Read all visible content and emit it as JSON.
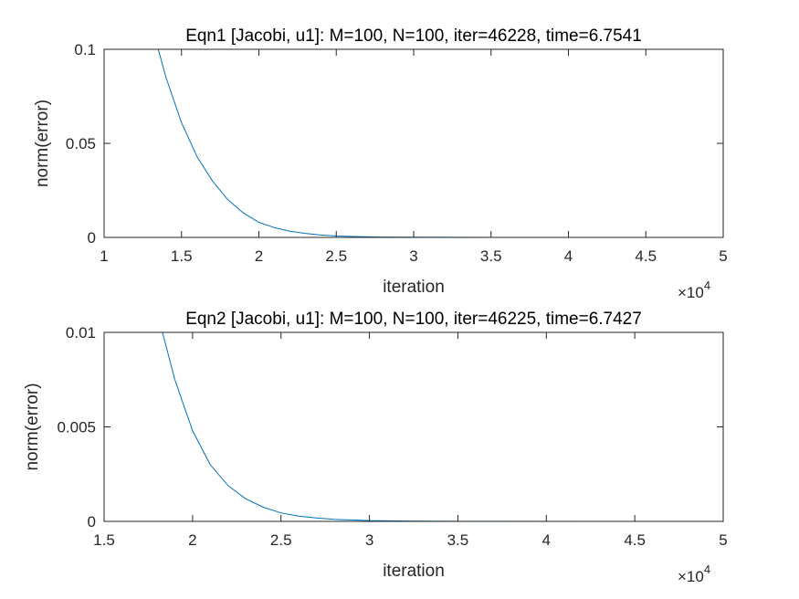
{
  "chart_data": [
    {
      "type": "line",
      "title": "Eqn1 [Jacobi, u1]: M=100, N=100, iter=46228, time=6.7541",
      "xlabel": "iteration",
      "ylabel": "norm(error)",
      "xlim": [
        10000,
        50000
      ],
      "ylim": [
        0,
        0.1
      ],
      "x_ticks": [
        10000,
        15000,
        20000,
        25000,
        30000,
        35000,
        40000,
        45000,
        50000
      ],
      "x_tick_labels": [
        "1",
        "1.5",
        "2",
        "2.5",
        "3",
        "3.5",
        "4",
        "4.5",
        "5"
      ],
      "x_exponent": "×10",
      "x_exponent_power": "4",
      "y_ticks": [
        0,
        0.05,
        0.1
      ],
      "y_tick_labels": [
        "0",
        "0.05",
        "0.1"
      ],
      "grid": false,
      "line_color": "#0072BD",
      "series": [
        {
          "x": [
            13500,
            14000,
            15000,
            16000,
            17000,
            18000,
            19000,
            20000,
            21000,
            22000,
            23000,
            24000,
            25000,
            26000,
            28000,
            30000,
            33000,
            36000,
            40000,
            43000,
            46228
          ],
          "values": [
            0.1,
            0.085,
            0.061,
            0.043,
            0.03,
            0.02,
            0.013,
            0.008,
            0.0052,
            0.0033,
            0.0021,
            0.0013,
            0.0008,
            0.0005,
            0.0002,
            0.0001,
            4e-05,
            2e-05,
            1e-05,
            5e-06,
            3e-06
          ]
        }
      ]
    },
    {
      "type": "line",
      "title": "Eqn2 [Jacobi, u1]: M=100, N=100, iter=46225, time=6.7427",
      "xlabel": "iteration",
      "ylabel": "norm(error)",
      "xlim": [
        15000,
        50000
      ],
      "ylim": [
        0,
        0.01
      ],
      "x_ticks": [
        15000,
        20000,
        25000,
        30000,
        35000,
        40000,
        45000,
        50000
      ],
      "x_tick_labels": [
        "1.5",
        "2",
        "2.5",
        "3",
        "3.5",
        "4",
        "4.5",
        "5"
      ],
      "x_exponent": "×10",
      "x_exponent_power": "4",
      "y_ticks": [
        0,
        0.005,
        0.01
      ],
      "y_tick_labels": [
        "0",
        "0.005",
        "0.01"
      ],
      "grid": false,
      "line_color": "#0072BD",
      "series": [
        {
          "x": [
            18300,
            19000,
            20000,
            21000,
            22000,
            23000,
            24000,
            25000,
            26000,
            27000,
            28000,
            30000,
            32000,
            35000,
            38000,
            42000,
            46225
          ],
          "values": [
            0.01,
            0.0075,
            0.0048,
            0.003,
            0.0019,
            0.0012,
            0.00075,
            0.00045,
            0.00028,
            0.00018,
            0.00011,
            4e-05,
            2e-05,
            8e-06,
            4e-06,
            2e-06,
            1e-06
          ]
        }
      ]
    }
  ]
}
